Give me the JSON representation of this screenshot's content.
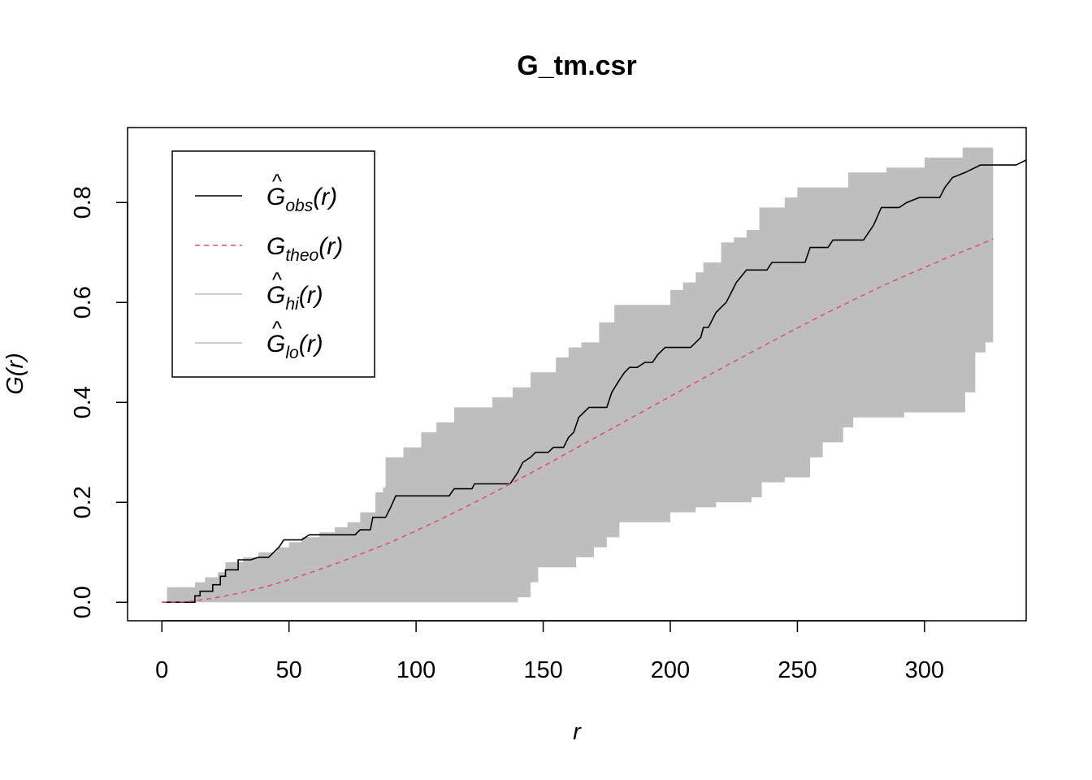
{
  "chart_data": {
    "type": "line",
    "title": "G_tm.csr",
    "xlabel": "r",
    "ylabel": "G(r)",
    "xlim": [
      -13.5,
      340
    ],
    "ylim": [
      -0.037,
      0.95
    ],
    "xticks": [
      0,
      50,
      100,
      150,
      200,
      250,
      300
    ],
    "xtick_labels": [
      "0",
      "50",
      "100",
      "150",
      "200",
      "250",
      "300"
    ],
    "yticks": [
      0.0,
      0.2,
      0.4,
      0.6,
      0.8
    ],
    "ytick_labels": [
      "0.0",
      "0.2",
      "0.4",
      "0.6",
      "0.8"
    ],
    "legend_position": "top-left",
    "legend": [
      {
        "base": "G",
        "hat": true,
        "sub": "obs",
        "arg": "(r)",
        "color": "#000000",
        "dash": false
      },
      {
        "base": "G",
        "hat": false,
        "sub": "theo",
        "arg": "(r)",
        "color": "#DF536B",
        "dash": true
      },
      {
        "base": "G",
        "hat": true,
        "sub": "hi",
        "arg": "(r)",
        "color": "#BEBEBE",
        "dash": false
      },
      {
        "base": "G",
        "hat": true,
        "sub": "lo",
        "arg": "(r)",
        "color": "#BEBEBE",
        "dash": false
      }
    ],
    "envelope": {
      "color": "#BEBEBE",
      "hi": [
        [
          0,
          0
        ],
        [
          2,
          0.03
        ],
        [
          12,
          0.03
        ],
        [
          13,
          0.04
        ],
        [
          17,
          0.05
        ],
        [
          22,
          0.06
        ],
        [
          25,
          0.08
        ],
        [
          32,
          0.09
        ],
        [
          38,
          0.1
        ],
        [
          45,
          0.11
        ],
        [
          50,
          0.12
        ],
        [
          55,
          0.13
        ],
        [
          62,
          0.14
        ],
        [
          68,
          0.15
        ],
        [
          73,
          0.16
        ],
        [
          78,
          0.18
        ],
        [
          84,
          0.22
        ],
        [
          87,
          0.23
        ],
        [
          88,
          0.29
        ],
        [
          95,
          0.31
        ],
        [
          102,
          0.34
        ],
        [
          108,
          0.36
        ],
        [
          115,
          0.39
        ],
        [
          130,
          0.41
        ],
        [
          138,
          0.43
        ],
        [
          145,
          0.46
        ],
        [
          155,
          0.49
        ],
        [
          160,
          0.51
        ],
        [
          165,
          0.52
        ],
        [
          172,
          0.56
        ],
        [
          178,
          0.595
        ],
        [
          194,
          0.595
        ],
        [
          200,
          0.625
        ],
        [
          205,
          0.64
        ],
        [
          210,
          0.66
        ],
        [
          213,
          0.68
        ],
        [
          220,
          0.72
        ],
        [
          225,
          0.73
        ],
        [
          230,
          0.745
        ],
        [
          235,
          0.79
        ],
        [
          245,
          0.81
        ],
        [
          250,
          0.83
        ],
        [
          270,
          0.86
        ],
        [
          285,
          0.87
        ],
        [
          300,
          0.89
        ],
        [
          315,
          0.91
        ],
        [
          327,
          0.92
        ]
      ],
      "lo": [
        [
          0,
          0
        ],
        [
          138,
          0
        ],
        [
          140,
          0.01
        ],
        [
          145,
          0.04
        ],
        [
          148,
          0.07
        ],
        [
          160,
          0.07
        ],
        [
          163,
          0.09
        ],
        [
          170,
          0.11
        ],
        [
          175,
          0.13
        ],
        [
          180,
          0.16
        ],
        [
          195,
          0.16
        ],
        [
          200,
          0.18
        ],
        [
          210,
          0.19
        ],
        [
          218,
          0.2
        ],
        [
          225,
          0.2
        ],
        [
          232,
          0.21
        ],
        [
          236,
          0.24
        ],
        [
          245,
          0.25
        ],
        [
          255,
          0.29
        ],
        [
          260,
          0.32
        ],
        [
          268,
          0.35
        ],
        [
          272,
          0.37
        ],
        [
          280,
          0.37
        ],
        [
          292,
          0.38
        ],
        [
          314,
          0.38
        ],
        [
          316,
          0.42
        ],
        [
          320,
          0.5
        ],
        [
          324,
          0.52
        ],
        [
          327,
          0.52
        ]
      ]
    },
    "series": [
      {
        "name": "obs",
        "color": "#000000",
        "values": [
          [
            0,
            0
          ],
          [
            13,
            0
          ],
          [
            13,
            0.013
          ],
          [
            15,
            0.013
          ],
          [
            15,
            0.022
          ],
          [
            17,
            0.022
          ],
          [
            20,
            0.022
          ],
          [
            20,
            0.035
          ],
          [
            23,
            0.035
          ],
          [
            23,
            0.052
          ],
          [
            25,
            0.052
          ],
          [
            25,
            0.065
          ],
          [
            30,
            0.065
          ],
          [
            30,
            0.085
          ],
          [
            35,
            0.085
          ],
          [
            38,
            0.09
          ],
          [
            42,
            0.09
          ],
          [
            44,
            0.1
          ],
          [
            46,
            0.11
          ],
          [
            48,
            0.125
          ],
          [
            55,
            0.125
          ],
          [
            58,
            0.135
          ],
          [
            76,
            0.135
          ],
          [
            78,
            0.145
          ],
          [
            82,
            0.145
          ],
          [
            83,
            0.17
          ],
          [
            88,
            0.17
          ],
          [
            90,
            0.19
          ],
          [
            92,
            0.213
          ],
          [
            113,
            0.213
          ],
          [
            115,
            0.227
          ],
          [
            122,
            0.227
          ],
          [
            123,
            0.237
          ],
          [
            137,
            0.237
          ],
          [
            140,
            0.26
          ],
          [
            142,
            0.28
          ],
          [
            145,
            0.29
          ],
          [
            147,
            0.3
          ],
          [
            152,
            0.3
          ],
          [
            154,
            0.31
          ],
          [
            158,
            0.31
          ],
          [
            160,
            0.33
          ],
          [
            162,
            0.34
          ],
          [
            164,
            0.37
          ],
          [
            166,
            0.38
          ],
          [
            168,
            0.39
          ],
          [
            175,
            0.39
          ],
          [
            177,
            0.42
          ],
          [
            180,
            0.445
          ],
          [
            182,
            0.46
          ],
          [
            184,
            0.47
          ],
          [
            187,
            0.47
          ],
          [
            190,
            0.48
          ],
          [
            193,
            0.48
          ],
          [
            195,
            0.495
          ],
          [
            198,
            0.51
          ],
          [
            208,
            0.51
          ],
          [
            210,
            0.52
          ],
          [
            212,
            0.53
          ],
          [
            213,
            0.55
          ],
          [
            215,
            0.55
          ],
          [
            218,
            0.58
          ],
          [
            222,
            0.6
          ],
          [
            224,
            0.62
          ],
          [
            226,
            0.64
          ],
          [
            230,
            0.665
          ],
          [
            238,
            0.665
          ],
          [
            240,
            0.68
          ],
          [
            253,
            0.68
          ],
          [
            255,
            0.71
          ],
          [
            262,
            0.71
          ],
          [
            264,
            0.725
          ],
          [
            276,
            0.725
          ],
          [
            280,
            0.755
          ],
          [
            283,
            0.79
          ],
          [
            290,
            0.79
          ],
          [
            293,
            0.8
          ],
          [
            298,
            0.81
          ],
          [
            306,
            0.81
          ],
          [
            308,
            0.83
          ],
          [
            311,
            0.85
          ],
          [
            316,
            0.86
          ],
          [
            322,
            0.875
          ],
          [
            336,
            0.875
          ],
          [
            340,
            0.885
          ]
        ]
      },
      {
        "name": "theo",
        "color": "#DF536B",
        "values": [
          [
            0,
            0
          ],
          [
            10,
            0.001
          ],
          [
            20,
            0.008
          ],
          [
            30,
            0.018
          ],
          [
            40,
            0.03
          ],
          [
            50,
            0.045
          ],
          [
            60,
            0.062
          ],
          [
            70,
            0.08
          ],
          [
            80,
            0.1
          ],
          [
            90,
            0.12
          ],
          [
            100,
            0.143
          ],
          [
            110,
            0.167
          ],
          [
            120,
            0.192
          ],
          [
            130,
            0.218
          ],
          [
            140,
            0.245
          ],
          [
            150,
            0.272
          ],
          [
            160,
            0.3
          ],
          [
            170,
            0.328
          ],
          [
            180,
            0.356
          ],
          [
            190,
            0.384
          ],
          [
            200,
            0.412
          ],
          [
            210,
            0.44
          ],
          [
            220,
            0.468
          ],
          [
            230,
            0.495
          ],
          [
            240,
            0.522
          ],
          [
            250,
            0.549
          ],
          [
            260,
            0.575
          ],
          [
            270,
            0.6
          ],
          [
            280,
            0.625
          ],
          [
            290,
            0.648
          ],
          [
            300,
            0.67
          ],
          [
            310,
            0.692
          ],
          [
            320,
            0.712
          ],
          [
            327,
            0.727
          ]
        ]
      }
    ]
  }
}
